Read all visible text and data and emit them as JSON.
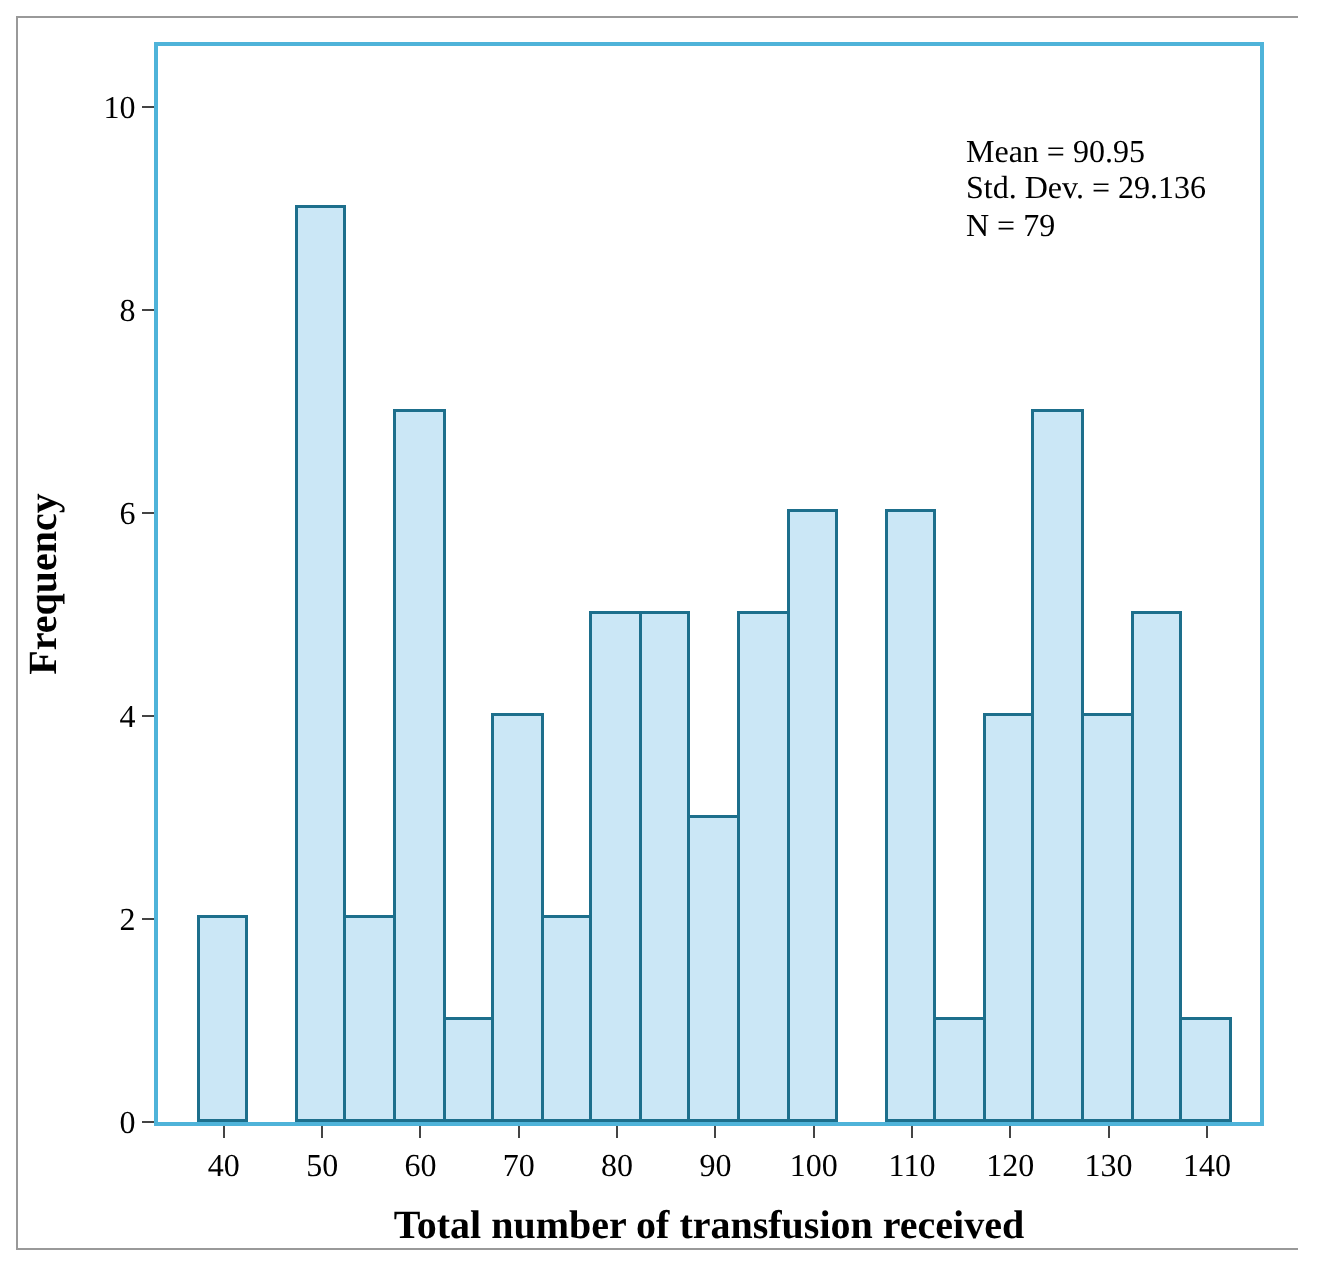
{
  "chart_data": {
    "type": "histogram",
    "xlabel": "Total number of transfusion received",
    "ylabel": "Frequency",
    "bins": [
      37.5,
      42.5,
      47.5,
      52.5,
      57.5,
      62.5,
      67.5,
      72.5,
      77.5,
      82.5,
      87.5,
      92.5,
      97.5,
      102.5,
      107.5,
      112.5,
      117.5,
      122.5,
      127.5,
      132.5,
      137.5,
      142.5
    ],
    "values": [
      2,
      0,
      9,
      2,
      7,
      1,
      4,
      2,
      5,
      5,
      3,
      5,
      6,
      0,
      6,
      1,
      4,
      7,
      4,
      5,
      1
    ],
    "color": "#cbe7f6",
    "xlim": [
      33.3,
      145.4
    ],
    "xticks": [
      40,
      50,
      60,
      70,
      80,
      90,
      100,
      110,
      120,
      130,
      140
    ],
    "ylim": [
      0,
      10.6
    ],
    "yticks": [
      0,
      2,
      4,
      6,
      8,
      10
    ],
    "grid": false,
    "annotations": [
      "Mean = 90.95",
      "Std. Dev. = 29.136",
      "N = 79"
    ]
  }
}
